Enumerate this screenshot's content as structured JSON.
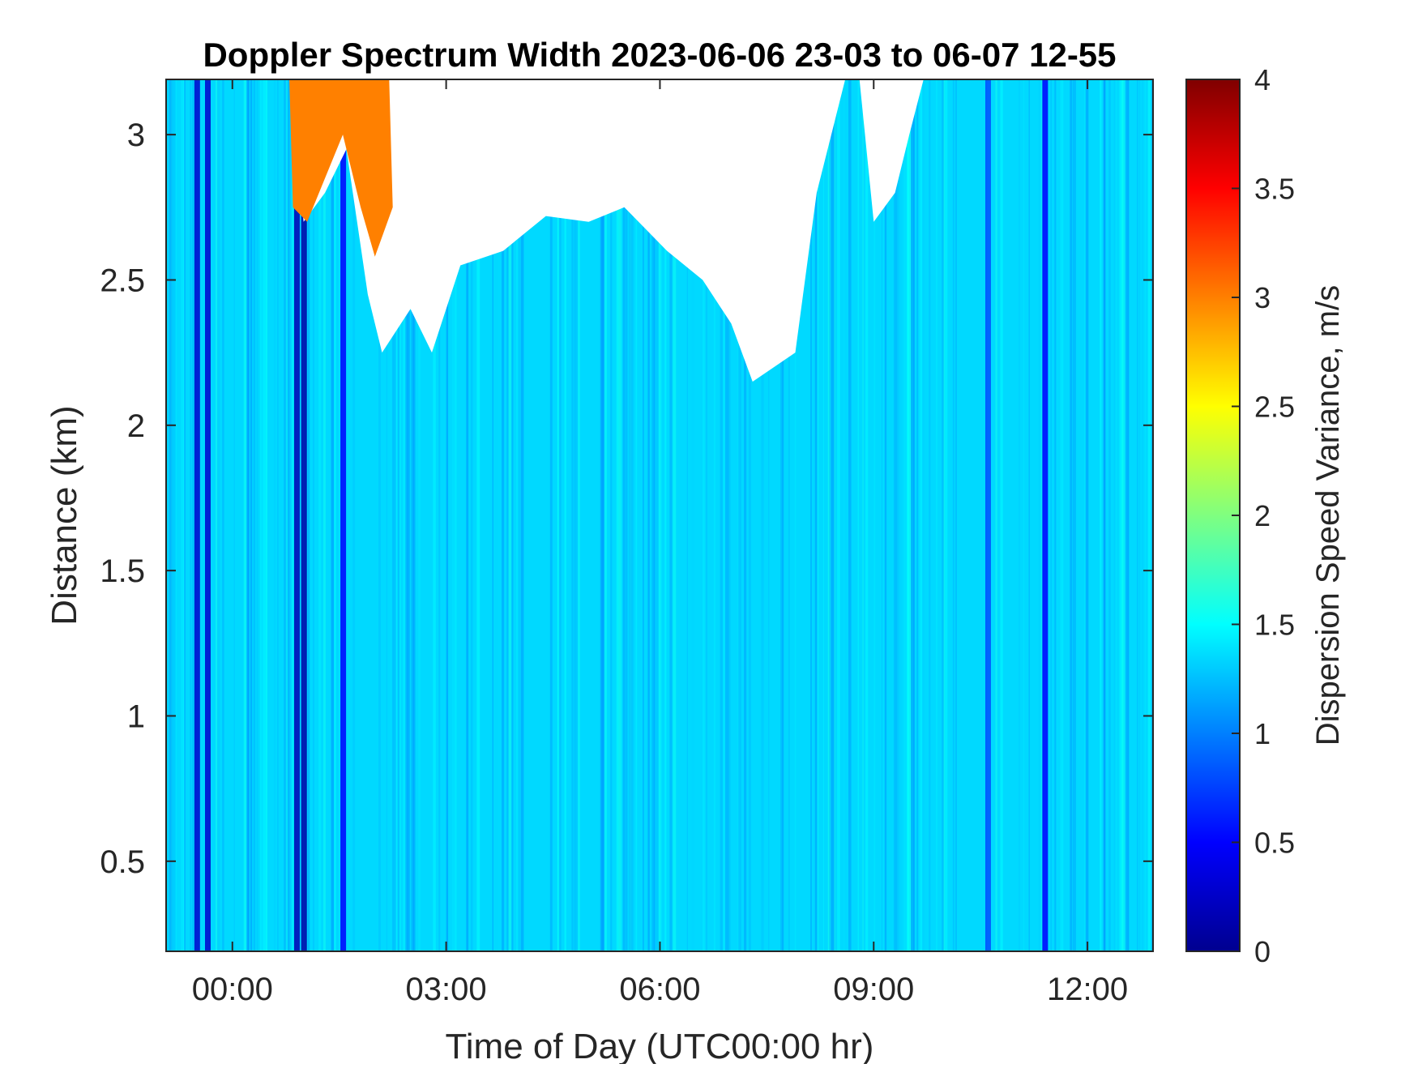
{
  "chart_data": {
    "type": "heatmap",
    "title": "Doppler Spectrum Width 2023-06-06 23-03 to 06-07 12-55",
    "xlabel": "Time of Day (UTC00:00 hr)",
    "ylabel": "Distance (km)",
    "colorbar_label": "Dispersion Speed Variance, m/s",
    "x_tick_labels": [
      "00:00",
      "03:00",
      "06:00",
      "09:00",
      "12:00"
    ],
    "x_tick_hours": [
      0,
      3,
      6,
      9,
      12
    ],
    "xlim_hours": [
      -0.93,
      12.92
    ],
    "y_tick_labels": [
      "0.5",
      "1",
      "1.5",
      "2",
      "2.5",
      "3"
    ],
    "y_tick_values": [
      0.5,
      1,
      1.5,
      2,
      2.5,
      3
    ],
    "ylim": [
      0.19,
      3.19
    ],
    "colorbar_tick_labels": [
      "0",
      "0.5",
      "1",
      "1.5",
      "2",
      "2.5",
      "3",
      "3.5",
      "4"
    ],
    "colorbar_tick_values": [
      0,
      0.5,
      1,
      1.5,
      2,
      2.5,
      3,
      3.5,
      4
    ],
    "clim": [
      0,
      4
    ],
    "colormap": "jet",
    "grid": false,
    "colorbar_position": "right",
    "background_value_ms": 1.35,
    "no_data_color": "#ffffff",
    "cloud_top_km": [
      {
        "hour": -0.93,
        "km": 3.19
      },
      {
        "hour": 0.8,
        "km": 3.19
      },
      {
        "hour": 1.0,
        "km": 2.7
      },
      {
        "hour": 1.3,
        "km": 2.8
      },
      {
        "hour": 1.6,
        "km": 2.95
      },
      {
        "hour": 1.9,
        "km": 2.45
      },
      {
        "hour": 2.1,
        "km": 2.25
      },
      {
        "hour": 2.5,
        "km": 2.4
      },
      {
        "hour": 2.8,
        "km": 2.25
      },
      {
        "hour": 3.2,
        "km": 2.55
      },
      {
        "hour": 3.8,
        "km": 2.6
      },
      {
        "hour": 4.4,
        "km": 2.72
      },
      {
        "hour": 5.0,
        "km": 2.7
      },
      {
        "hour": 5.5,
        "km": 2.75
      },
      {
        "hour": 6.1,
        "km": 2.6
      },
      {
        "hour": 6.6,
        "km": 2.5
      },
      {
        "hour": 7.0,
        "km": 2.35
      },
      {
        "hour": 7.3,
        "km": 2.15
      },
      {
        "hour": 7.6,
        "km": 2.2
      },
      {
        "hour": 7.9,
        "km": 2.25
      },
      {
        "hour": 8.2,
        "km": 2.8
      },
      {
        "hour": 8.6,
        "km": 3.19
      },
      {
        "hour": 8.8,
        "km": 3.19
      },
      {
        "hour": 9.0,
        "km": 2.7
      },
      {
        "hour": 9.3,
        "km": 2.8
      },
      {
        "hour": 9.5,
        "km": 3.0
      },
      {
        "hour": 9.7,
        "km": 3.19
      },
      {
        "hour": 12.92,
        "km": 3.19
      }
    ],
    "high_variance_region": {
      "value_ms": 3.0,
      "outline": [
        {
          "hour": 0.8,
          "km": 3.19
        },
        {
          "hour": 2.2,
          "km": 3.19
        },
        {
          "hour": 2.25,
          "km": 2.75
        },
        {
          "hour": 2.0,
          "km": 2.58
        },
        {
          "hour": 1.8,
          "km": 2.75
        },
        {
          "hour": 1.55,
          "km": 3.0
        },
        {
          "hour": 1.3,
          "km": 2.85
        },
        {
          "hour": 1.05,
          "km": 2.7
        },
        {
          "hour": 0.85,
          "km": 2.75
        }
      ]
    },
    "low_variance_columns": [
      {
        "hour": -0.5,
        "value_ms": 0.3
      },
      {
        "hour": -0.35,
        "value_ms": 0.3
      },
      {
        "hour": 0.9,
        "value_ms": 0.2
      },
      {
        "hour": 1.0,
        "value_ms": 0.15
      },
      {
        "hour": 1.55,
        "value_ms": 0.5
      },
      {
        "hour": 10.6,
        "value_ms": 0.8
      },
      {
        "hour": 11.4,
        "value_ms": 0.5
      }
    ]
  }
}
